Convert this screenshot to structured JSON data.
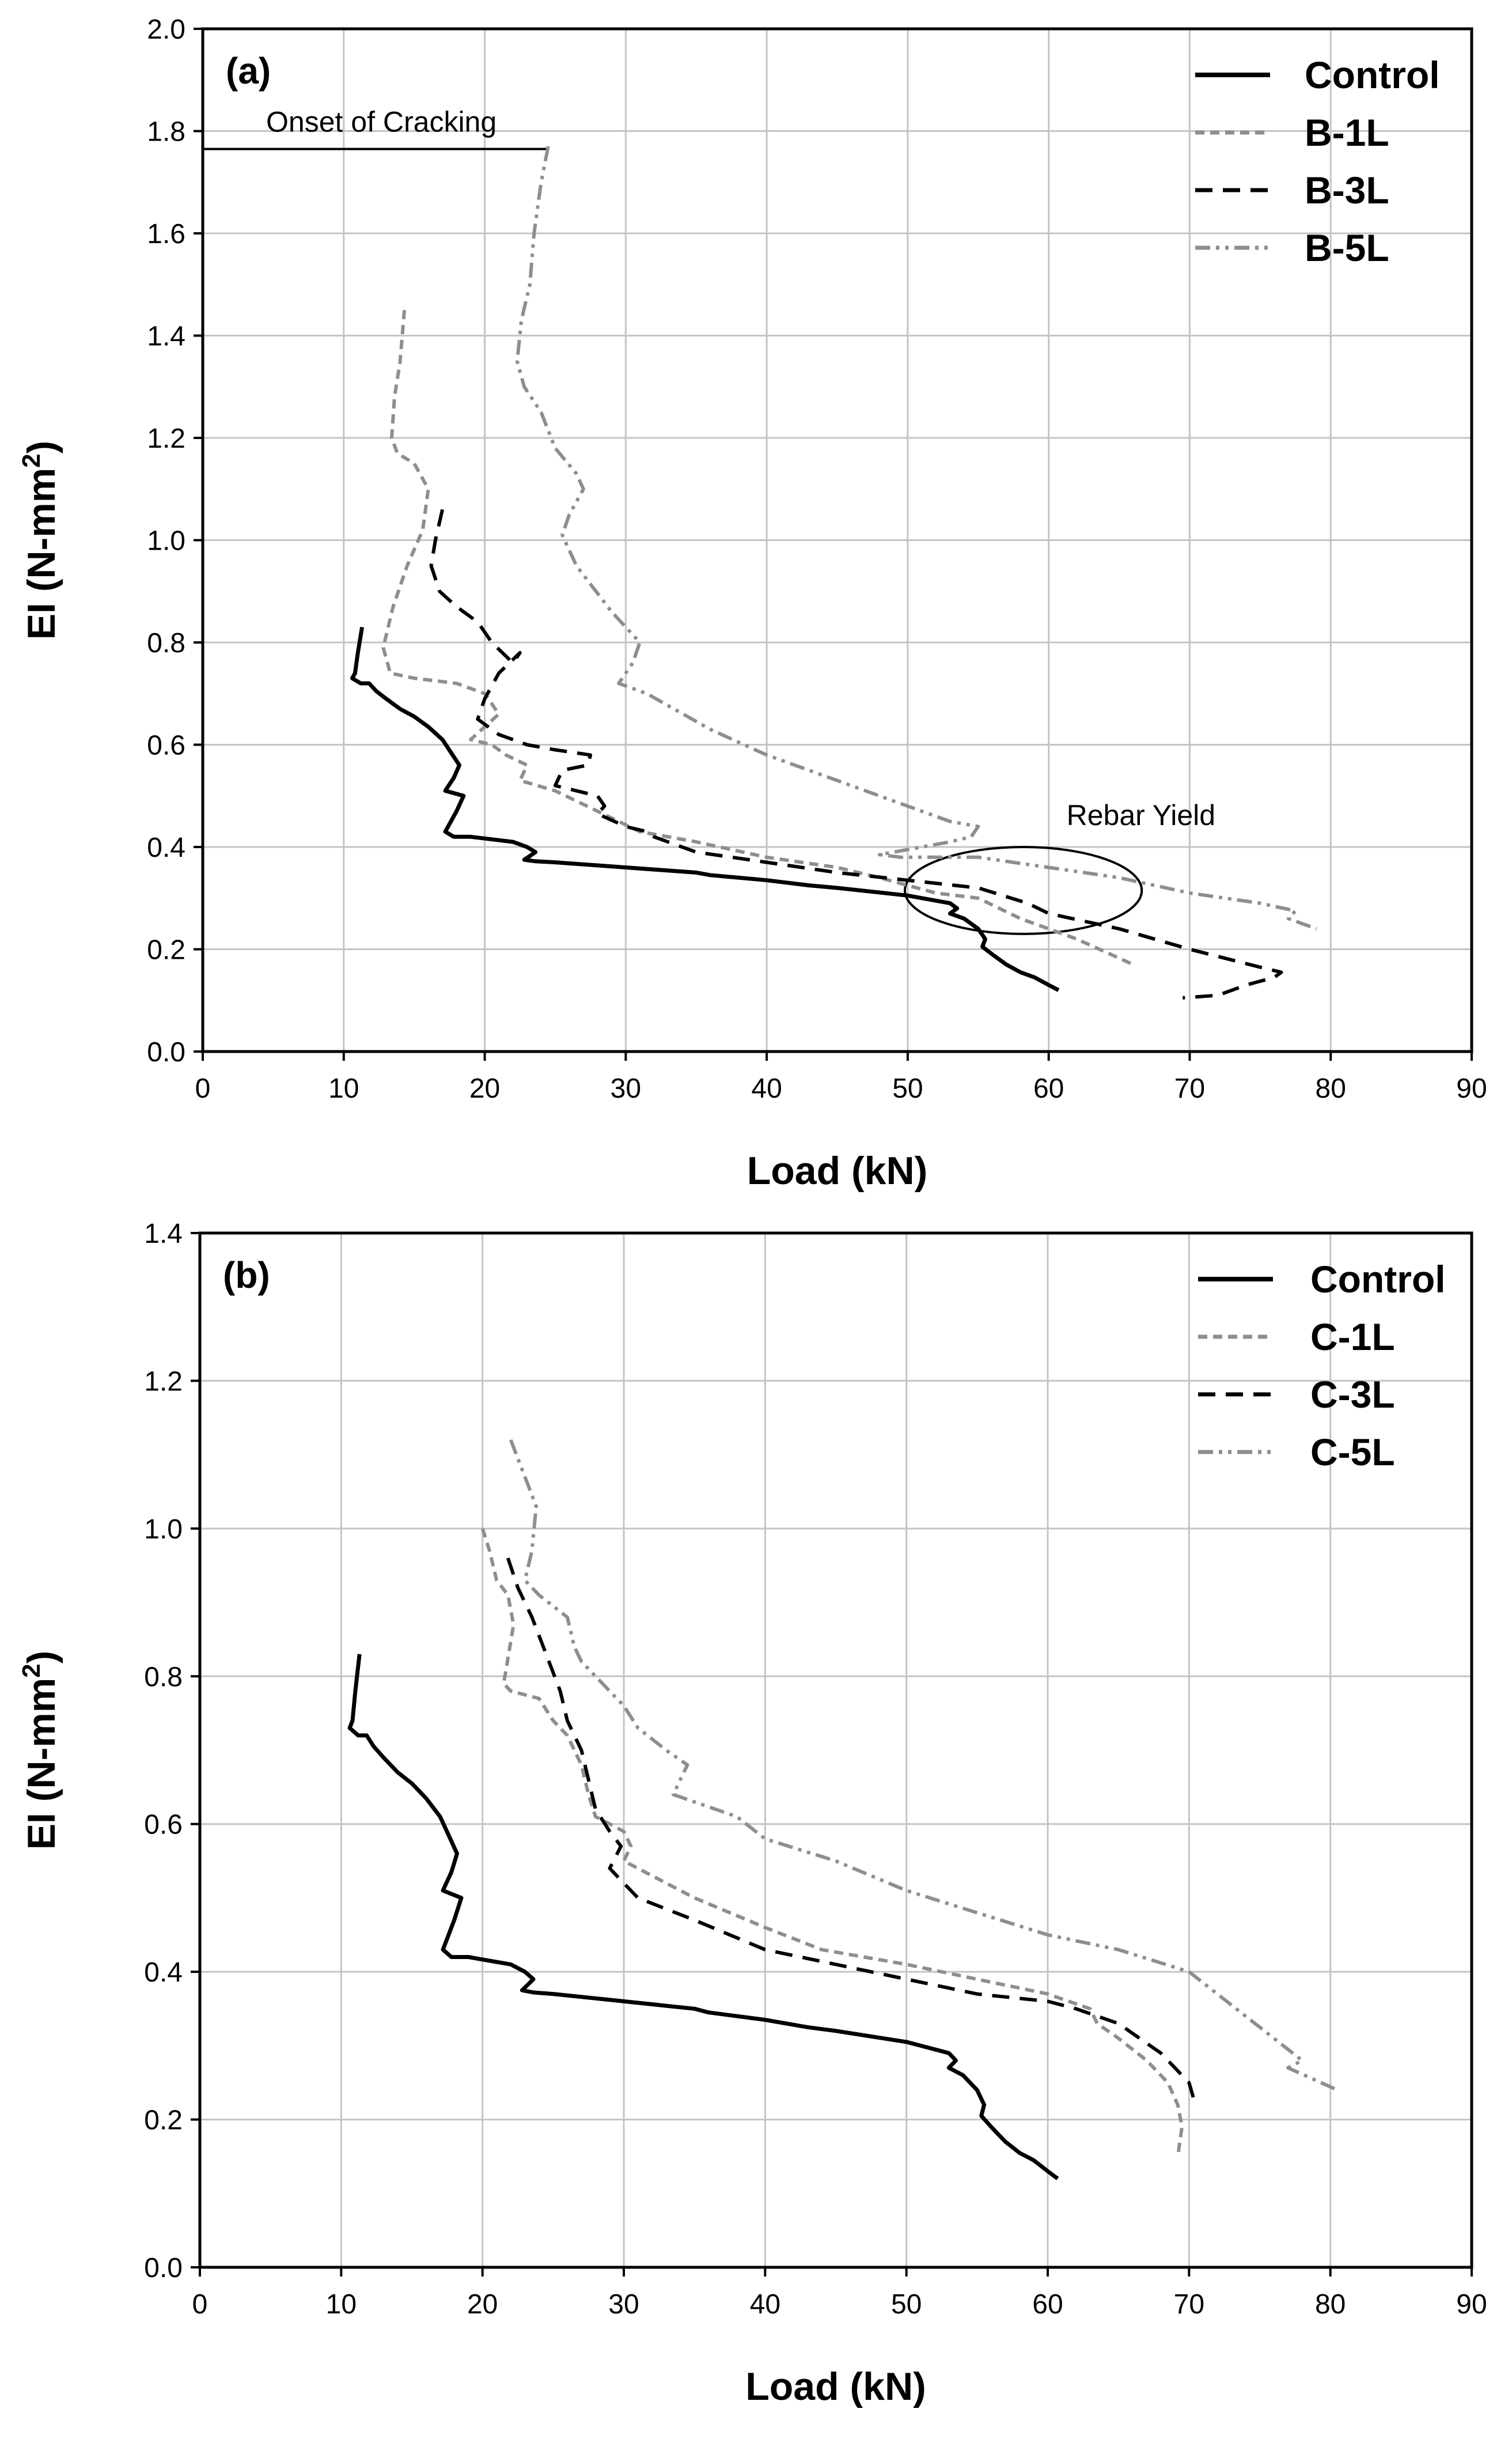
{
  "chart_data": [
    {
      "type": "line",
      "panel_label": "(a)",
      "xlabel": "Load (kN)",
      "ylabel": "EI (N-mm²)",
      "ylabel_base": "EI (N-mm",
      "ylabel_sup": "2",
      "ylabel_tail": ")",
      "xlim": [
        0,
        90
      ],
      "ylim": [
        0,
        2.0
      ],
      "xticks": [
        "0",
        "10",
        "20",
        "30",
        "40",
        "50",
        "60",
        "70",
        "80",
        "90"
      ],
      "yticks": [
        "0.0",
        "0.2",
        "0.4",
        "0.6",
        "0.8",
        "1.0",
        "1.2",
        "1.4",
        "1.6",
        "1.8",
        "2.0"
      ],
      "grid": true,
      "legend_position": "top-right",
      "annotations": [
        {
          "kind": "hline",
          "text": "Onset of Cracking",
          "x_start": 0,
          "x_end": 24.5,
          "y": 1.765
        },
        {
          "kind": "ellipse",
          "text": "Rebar Yield",
          "cx": 58.2,
          "cy": 0.315,
          "rx": 8.4,
          "ry": 0.085
        }
      ],
      "series": [
        {
          "name": "Control",
          "color": "#000000",
          "dash": "solid",
          "x": [
            11.3,
            11.0,
            10.8,
            10.6,
            11.2,
            11.8,
            12.3,
            13.0,
            14.0,
            15.0,
            16.0,
            17.0,
            17.6,
            18.2,
            17.8,
            17.2,
            18.5,
            18.0,
            17.2,
            17.8,
            19.0,
            20.5,
            22.0,
            23.0,
            23.6,
            22.8,
            23.6,
            25.0,
            30.0,
            35.0,
            36.0,
            40.0,
            43.0,
            45.0,
            50.0,
            53.0,
            53.5,
            53.0,
            54.0,
            55.0,
            55.5,
            55.3,
            56.0,
            57.0,
            58.0,
            59.0,
            60.0,
            60.7
          ],
          "y": [
            0.83,
            0.78,
            0.74,
            0.73,
            0.72,
            0.72,
            0.705,
            0.69,
            0.67,
            0.655,
            0.635,
            0.61,
            0.585,
            0.56,
            0.535,
            0.51,
            0.5,
            0.47,
            0.43,
            0.42,
            0.42,
            0.415,
            0.41,
            0.4,
            0.39,
            0.375,
            0.372,
            0.37,
            0.36,
            0.35,
            0.345,
            0.335,
            0.325,
            0.32,
            0.305,
            0.29,
            0.28,
            0.27,
            0.26,
            0.24,
            0.22,
            0.205,
            0.19,
            0.17,
            0.155,
            0.145,
            0.13,
            0.12
          ]
        },
        {
          "name": "B-1L",
          "color": "#8e8e8e",
          "dash": "dashed-fine",
          "x": [
            14.3,
            14.0,
            13.6,
            13.4,
            13.8,
            15.0,
            16.0,
            15.6,
            14.5,
            13.5,
            12.8,
            13.3,
            15.0,
            18.0,
            20.0,
            21.0,
            19.0,
            20.5,
            21.5,
            23.0,
            22.5,
            25.0,
            28.0,
            31.0,
            35.0,
            40.0,
            45.0,
            48.0,
            52.0,
            55.0,
            58.0,
            62.0,
            66.0
          ],
          "y": [
            1.45,
            1.35,
            1.28,
            1.2,
            1.17,
            1.15,
            1.1,
            1.02,
            0.95,
            0.87,
            0.79,
            0.74,
            0.73,
            0.72,
            0.7,
            0.66,
            0.61,
            0.6,
            0.58,
            0.56,
            0.53,
            0.51,
            0.47,
            0.43,
            0.41,
            0.38,
            0.36,
            0.34,
            0.31,
            0.3,
            0.26,
            0.22,
            0.17
          ]
        },
        {
          "name": "B-3L",
          "color": "#000000",
          "dash": "dashed",
          "x": [
            17.0,
            16.5,
            16.2,
            16.8,
            18.0,
            19.5,
            20.5,
            22.0,
            22.5,
            21.0,
            20.0,
            19.5,
            21.0,
            23.0,
            25.0,
            27.5,
            27.3,
            25.5,
            25.0,
            26.5,
            28.0,
            28.5,
            28.0,
            30.0,
            31.5,
            32.0,
            35.0,
            40.0,
            45.0,
            50.0,
            55.0,
            58.5,
            60.0,
            65.0,
            70.0,
            75.0,
            76.5,
            76.0,
            74.0,
            72.0,
            69.5
          ],
          "y": [
            1.06,
            1.0,
            0.95,
            0.9,
            0.87,
            0.84,
            0.8,
            0.76,
            0.78,
            0.74,
            0.69,
            0.65,
            0.62,
            0.6,
            0.59,
            0.58,
            0.56,
            0.55,
            0.52,
            0.51,
            0.5,
            0.48,
            0.465,
            0.44,
            0.43,
            0.42,
            0.39,
            0.37,
            0.35,
            0.335,
            0.32,
            0.29,
            0.27,
            0.24,
            0.2,
            0.165,
            0.155,
            0.145,
            0.13,
            0.11,
            0.105
          ]
        },
        {
          "name": "B-5L",
          "color": "#8e8e8e",
          "dash": "dash-dot-dot",
          "x": [
            24.5,
            24.0,
            23.5,
            23.2,
            22.6,
            22.3,
            22.8,
            24.0,
            25.0,
            26.5,
            27.0,
            26.0,
            25.5,
            26.5,
            29.0,
            31.0,
            30.5,
            29.5,
            31.5,
            36.0,
            40.0,
            45.0,
            48.0,
            51.0,
            53.0,
            55.0,
            54.5,
            53.0,
            51.0,
            49.0,
            48.0,
            49.5,
            51.5,
            55.0,
            60.0,
            65.0,
            70.0,
            75.0,
            77.5,
            77.0,
            79.0
          ],
          "y": [
            1.77,
            1.7,
            1.6,
            1.5,
            1.43,
            1.35,
            1.3,
            1.25,
            1.18,
            1.13,
            1.1,
            1.05,
            1.01,
            0.95,
            0.86,
            0.8,
            0.76,
            0.72,
            0.7,
            0.63,
            0.58,
            0.53,
            0.5,
            0.47,
            0.45,
            0.44,
            0.42,
            0.41,
            0.4,
            0.39,
            0.385,
            0.38,
            0.38,
            0.38,
            0.36,
            0.34,
            0.31,
            0.29,
            0.275,
            0.26,
            0.24
          ]
        }
      ]
    },
    {
      "type": "line",
      "panel_label": "(b)",
      "xlabel": "Load (kN)",
      "ylabel": "EI (N-mm²)",
      "ylabel_base": "EI (N-mm",
      "ylabel_sup": "2",
      "ylabel_tail": ")",
      "xlim": [
        0,
        90
      ],
      "ylim": [
        0,
        1.4
      ],
      "xticks": [
        "0",
        "10",
        "20",
        "30",
        "40",
        "50",
        "60",
        "70",
        "80",
        "90"
      ],
      "yticks": [
        "0.0",
        "0.2",
        "0.4",
        "0.6",
        "0.8",
        "1.0",
        "1.2",
        "1.4"
      ],
      "grid": true,
      "legend_position": "top-right",
      "annotations": [],
      "series": [
        {
          "name": "Control",
          "color": "#000000",
          "dash": "solid",
          "x": [
            11.3,
            11.0,
            10.8,
            10.6,
            11.2,
            11.8,
            12.3,
            13.0,
            14.0,
            15.0,
            16.0,
            17.0,
            17.6,
            18.2,
            17.8,
            17.2,
            18.5,
            18.0,
            17.2,
            17.8,
            19.0,
            20.5,
            22.0,
            23.0,
            23.6,
            22.8,
            23.6,
            25.0,
            30.0,
            35.0,
            36.0,
            40.0,
            43.0,
            45.0,
            50.0,
            53.0,
            53.5,
            53.0,
            54.0,
            55.0,
            55.5,
            55.3,
            56.0,
            57.0,
            58.0,
            59.0,
            60.0,
            60.7
          ],
          "y": [
            0.83,
            0.78,
            0.74,
            0.73,
            0.72,
            0.72,
            0.705,
            0.69,
            0.67,
            0.655,
            0.635,
            0.61,
            0.585,
            0.56,
            0.535,
            0.51,
            0.5,
            0.47,
            0.43,
            0.42,
            0.42,
            0.415,
            0.41,
            0.4,
            0.39,
            0.375,
            0.372,
            0.37,
            0.36,
            0.35,
            0.345,
            0.335,
            0.325,
            0.32,
            0.305,
            0.29,
            0.28,
            0.27,
            0.26,
            0.24,
            0.22,
            0.205,
            0.19,
            0.17,
            0.155,
            0.145,
            0.13,
            0.12
          ]
        },
        {
          "name": "C-1L",
          "color": "#8e8e8e",
          "dash": "dashed-fine",
          "x": [
            20.0,
            20.5,
            21.0,
            21.8,
            22.2,
            21.5,
            22.0,
            24.0,
            25.0,
            26.0,
            27.0,
            27.5,
            28.0,
            29.0,
            30.0,
            30.5,
            30.0,
            31.0,
            35.0,
            40.0,
            44.0,
            50.0,
            55.0,
            60.0,
            63.0,
            63.5,
            65.0,
            67.0,
            68.5,
            69.2,
            69.5,
            69.2
          ],
          "y": [
            1.0,
            0.97,
            0.93,
            0.91,
            0.87,
            0.79,
            0.78,
            0.77,
            0.74,
            0.72,
            0.68,
            0.64,
            0.61,
            0.6,
            0.59,
            0.57,
            0.55,
            0.54,
            0.5,
            0.46,
            0.43,
            0.41,
            0.39,
            0.37,
            0.35,
            0.33,
            0.31,
            0.28,
            0.25,
            0.22,
            0.19,
            0.15
          ]
        },
        {
          "name": "C-3L",
          "color": "#000000",
          "dash": "dashed",
          "x": [
            21.8,
            22.5,
            23.5,
            24.5,
            25.5,
            26.0,
            27.0,
            27.5,
            28.0,
            29.0,
            29.8,
            29.0,
            30.0,
            31.0,
            35.0,
            40.0,
            45.0,
            50.0,
            55.0,
            60.0,
            62.0,
            65.0,
            68.0,
            70.0,
            70.3
          ],
          "y": [
            0.96,
            0.92,
            0.88,
            0.83,
            0.78,
            0.74,
            0.7,
            0.66,
            0.62,
            0.59,
            0.57,
            0.54,
            0.52,
            0.5,
            0.47,
            0.43,
            0.41,
            0.39,
            0.37,
            0.36,
            0.35,
            0.33,
            0.29,
            0.25,
            0.23
          ]
        },
        {
          "name": "C-5L",
          "color": "#8e8e8e",
          "dash": "dash-dot-dot",
          "x": [
            22.0,
            23.0,
            23.8,
            23.5,
            23.0,
            24.0,
            26.0,
            26.5,
            27.0,
            28.5,
            30.0,
            31.0,
            33.0,
            34.5,
            33.5,
            35.0,
            38.0,
            40.0,
            45.0,
            50.0,
            55.0,
            60.0,
            65.0,
            70.0,
            72.0,
            74.0,
            76.0,
            78.0,
            77.0,
            80.5
          ],
          "y": [
            1.12,
            1.07,
            1.03,
            0.97,
            0.93,
            0.91,
            0.88,
            0.84,
            0.82,
            0.79,
            0.76,
            0.73,
            0.7,
            0.68,
            0.64,
            0.63,
            0.61,
            0.58,
            0.55,
            0.51,
            0.48,
            0.45,
            0.43,
            0.4,
            0.37,
            0.34,
            0.31,
            0.28,
            0.27,
            0.24
          ]
        }
      ]
    }
  ]
}
